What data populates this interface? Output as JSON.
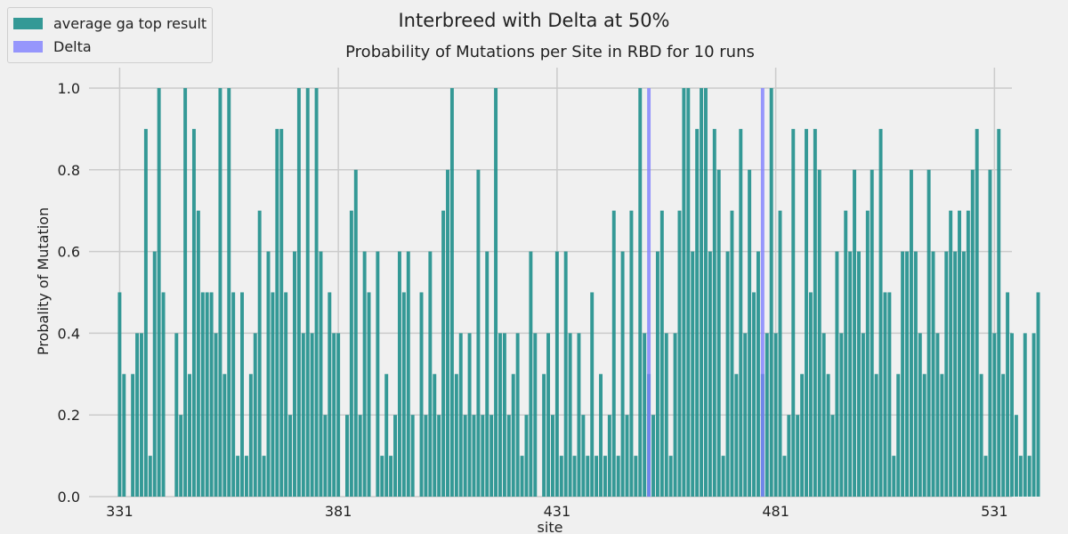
{
  "chart_data": {
    "type": "bar",
    "suptitle": "Interbreed with Delta at 50%",
    "title": "Probability of Mutations per Site in RBD for 10 runs",
    "xlabel": "site",
    "ylabel": "Probality of Mutation",
    "x_start": 331,
    "xlim": [
      324,
      535
    ],
    "ylim": [
      0,
      1.05
    ],
    "x_ticks": [
      331,
      381,
      431,
      481,
      531
    ],
    "y_ticks": [
      0.0,
      0.2,
      0.4,
      0.6,
      0.8,
      1.0
    ],
    "grid": true,
    "legend_position": "top-left",
    "series": [
      {
        "name": "average ga top result",
        "color": "#1f8f8c",
        "values": [
          0.5,
          0.3,
          0,
          0.3,
          0.4,
          0.4,
          0.9,
          0.1,
          0.6,
          1.0,
          0.5,
          0,
          0,
          0.4,
          0.2,
          1.0,
          0.3,
          0.9,
          0.7,
          0.5,
          0.5,
          0.5,
          0.4,
          1.0,
          0.3,
          1.0,
          0.5,
          0.1,
          0.5,
          0.1,
          0.3,
          0.4,
          0.7,
          0.1,
          0.6,
          0.5,
          0.9,
          0.9,
          0.5,
          0.2,
          0.6,
          1.0,
          0.4,
          1.0,
          0.4,
          1.0,
          0.6,
          0.2,
          0.5,
          0.4,
          0.4,
          0,
          0.2,
          0.7,
          0.8,
          0.2,
          0.6,
          0.5,
          0,
          0.6,
          0.1,
          0.3,
          0.1,
          0.2,
          0.6,
          0.5,
          0.6,
          0.2,
          0,
          0.5,
          0.2,
          0.6,
          0.3,
          0.2,
          0.7,
          0.8,
          1.0,
          0.3,
          0.4,
          0.2,
          0.4,
          0.2,
          0.8,
          0.2,
          0.6,
          0.2,
          1.0,
          0.4,
          0.4,
          0.2,
          0.3,
          0.4,
          0.1,
          0.2,
          0.6,
          0.4,
          0,
          0.3,
          0.4,
          0.2,
          0.6,
          0.1,
          0.6,
          0.4,
          0.1,
          0.4,
          0.2,
          0.1,
          0.5,
          0.1,
          0.3,
          0.1,
          0.2,
          0.7,
          0.1,
          0.6,
          0.2,
          0.7,
          0.1,
          1.0,
          0.4,
          0.3,
          0.2,
          0.6,
          0.7,
          0.4,
          0.1,
          0.4,
          0.7,
          1.0,
          1.0,
          0.6,
          0.9,
          1.0,
          1.0,
          0.6,
          0.9,
          0.8,
          0.1,
          0.6,
          0.7,
          0.3,
          0.9,
          0.4,
          0.8,
          0.5,
          0.6,
          0.3,
          0.4,
          1.0,
          0.4,
          0.7,
          0.1,
          0.2,
          0.9,
          0.2,
          0.3,
          0.9,
          0.5,
          0.9,
          0.8,
          0.4,
          0.3,
          0.2,
          0.6,
          0.4,
          0.7,
          0.6,
          0.8,
          0.6,
          0.4,
          0.7,
          0.8,
          0.3,
          0.9,
          0.5,
          0.5,
          0.1,
          0.3,
          0.6,
          0.6,
          0.8,
          0.6,
          0.4,
          0.3,
          0.8,
          0.6,
          0.4,
          0.3,
          0.6,
          0.7,
          0.6,
          0.7,
          0.6,
          0.7,
          0.8,
          0.9,
          0.3,
          0.1,
          0.8,
          0.4,
          0.9,
          0.3,
          0.5,
          0.4,
          0.2,
          0.1,
          0.4,
          0.1,
          0.4,
          0.5
        ]
      },
      {
        "name": "Delta",
        "color": "#8080ff",
        "values_by_site": {
          "452": 1.0,
          "478": 1.0
        }
      }
    ]
  }
}
